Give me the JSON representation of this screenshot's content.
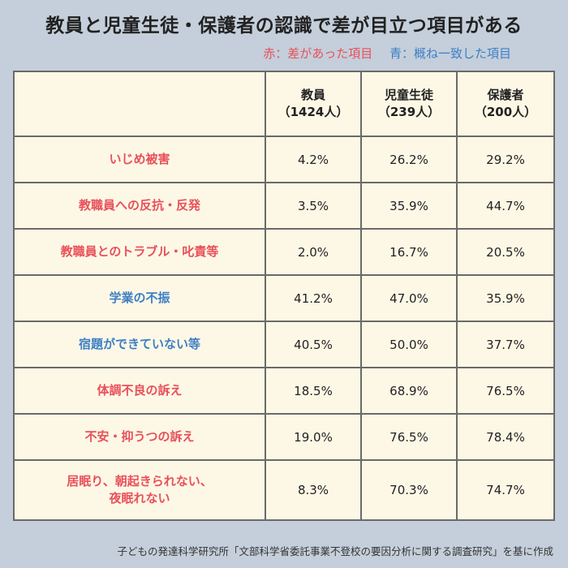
{
  "title": "教員と児童生徒・保護者の認識で差が目立つ項目がある",
  "legend": {
    "red": "赤：差があった項目",
    "blue": "青：概ね一致した項目",
    "red_color": "#e8505a",
    "blue_color": "#3e7fc4"
  },
  "source": "子どもの発達科学研究所「文部科学省委託事業不登校の要因分析に関する調査研究」を基に作成",
  "chart_data": {
    "type": "table",
    "columns": [
      {
        "name": "教員",
        "n": "（1424人）"
      },
      {
        "name": "児童生徒",
        "n": "（239人）"
      },
      {
        "name": "保護者",
        "n": "（200人）"
      }
    ],
    "rows": [
      {
        "label": "いじめ被害",
        "highlight": "red",
        "values": [
          "4.2%",
          "26.2%",
          "29.2%"
        ]
      },
      {
        "label": "教職員への反抗・反発",
        "highlight": "red",
        "values": [
          "3.5%",
          "35.9%",
          "44.7%"
        ]
      },
      {
        "label": "教職員とのトラブル・叱責等",
        "highlight": "red",
        "values": [
          "2.0%",
          "16.7%",
          "20.5%"
        ]
      },
      {
        "label": "学業の不振",
        "highlight": "blue",
        "values": [
          "41.2%",
          "47.0%",
          "35.9%"
        ]
      },
      {
        "label": "宿題ができていない等",
        "highlight": "blue",
        "values": [
          "40.5%",
          "50.0%",
          "37.7%"
        ]
      },
      {
        "label": "体調不良の訴え",
        "highlight": "red",
        "values": [
          "18.5%",
          "68.9%",
          "76.5%"
        ]
      },
      {
        "label": "不安・抑うつの訴え",
        "highlight": "red",
        "values": [
          "19.0%",
          "76.5%",
          "78.4%"
        ]
      },
      {
        "label": "居眠り、朝起きられない、",
        "label2": "夜眠れない",
        "highlight": "red",
        "values": [
          "8.3%",
          "70.3%",
          "74.7%"
        ]
      }
    ]
  }
}
